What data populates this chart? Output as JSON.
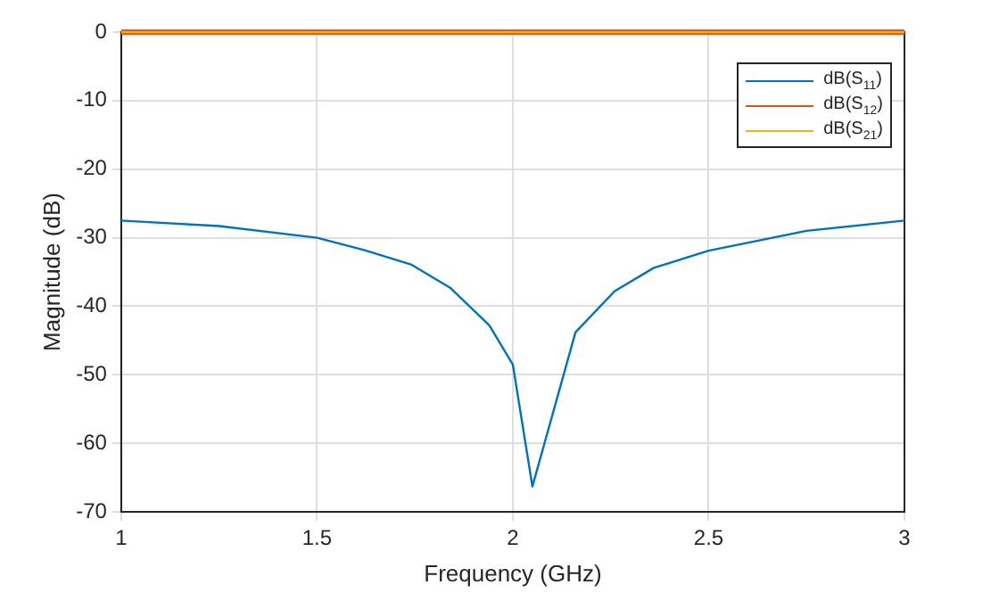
{
  "chart_data": {
    "type": "line",
    "xlabel": "Frequency (GHz)",
    "ylabel": "Magnitude (dB)",
    "xlim": [
      1,
      3
    ],
    "xticks": [
      1,
      1.5,
      2,
      2.5,
      3
    ],
    "ylim": [
      -70,
      0
    ],
    "yticks": [
      -70,
      -60,
      -50,
      -40,
      -30,
      -20,
      -10,
      0
    ],
    "grid": true,
    "legend": "top right",
    "marker": "none",
    "series": [
      {
        "name": "dB(S$_{11}$)",
        "color": "#0072bd",
        "x": [
          1,
          1.25,
          1.5,
          1.62,
          1.74,
          1.84,
          1.94,
          2,
          2.05,
          2.16,
          2.26,
          2.36,
          2.5,
          2.75,
          3
        ],
        "values": [
          -27.5,
          -28.3,
          -30,
          -31.8,
          -33.9,
          -37.3,
          -42.8,
          -48.5,
          -66.3,
          -43.8,
          -37.8,
          -34.4,
          -31.9,
          -29,
          -27.5
        ]
      },
      {
        "name": "dB(S$_{12}$)",
        "color": "#d95319",
        "x": [
          1,
          3
        ],
        "values": [
          0,
          0
        ]
      },
      {
        "name": "dB(S$_{21}$)",
        "color": "#edb120",
        "x": [
          1,
          3
        ],
        "values": [
          0,
          0
        ]
      }
    ]
  }
}
